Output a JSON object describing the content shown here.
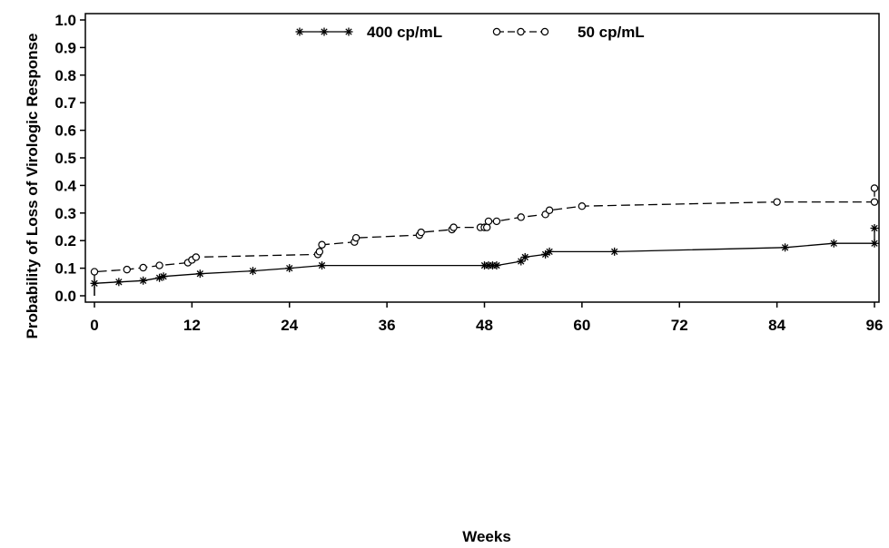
{
  "chart_data": {
    "type": "line",
    "title": "",
    "xlabel": "Weeks",
    "ylabel": "Probability of Loss of Virologic Response",
    "xlim": [
      0,
      96
    ],
    "ylim": [
      0.0,
      1.0
    ],
    "x_ticks": [
      0,
      12,
      24,
      36,
      48,
      60,
      72,
      84,
      96
    ],
    "y_ticks": [
      0.0,
      0.1,
      0.2,
      0.3,
      0.4,
      0.5,
      0.6,
      0.7,
      0.8,
      0.9,
      1.0
    ],
    "x_tick_labels": [
      "0",
      "12",
      "24",
      "36",
      "48",
      "60",
      "72",
      "84",
      "96"
    ],
    "y_tick_labels": [
      "0.0",
      "0.1",
      "0.2",
      "0.3",
      "0.4",
      "0.5",
      "0.6",
      "0.7",
      "0.8",
      "0.9",
      "1.0"
    ],
    "grid": false,
    "legend": "top-center",
    "series": [
      {
        "name": "400 cp/mL",
        "line": "solid",
        "marker": "star",
        "color": "#000000",
        "points": [
          [
            0,
            0.0
          ],
          [
            0,
            0.045
          ],
          [
            3,
            0.05
          ],
          [
            6,
            0.055
          ],
          [
            8,
            0.065
          ],
          [
            8.5,
            0.07
          ],
          [
            13,
            0.08
          ],
          [
            19.5,
            0.09
          ],
          [
            24,
            0.1
          ],
          [
            28,
            0.11
          ],
          [
            48,
            0.11
          ],
          [
            48.5,
            0.11
          ],
          [
            49,
            0.11
          ],
          [
            49.5,
            0.11
          ],
          [
            52.5,
            0.125
          ],
          [
            53,
            0.14
          ],
          [
            55.5,
            0.15
          ],
          [
            56,
            0.16
          ],
          [
            64,
            0.16
          ],
          [
            85,
            0.175
          ],
          [
            91,
            0.19
          ],
          [
            96,
            0.19
          ],
          [
            96,
            0.245
          ]
        ]
      },
      {
        "name": "50 cp/mL",
        "line": "dashed",
        "marker": "circle",
        "color": "#000000",
        "points": [
          [
            0,
            0.0
          ],
          [
            0,
            0.087
          ],
          [
            4,
            0.095
          ],
          [
            6,
            0.102
          ],
          [
            8,
            0.11
          ],
          [
            11.5,
            0.12
          ],
          [
            12,
            0.13
          ],
          [
            12.5,
            0.14
          ],
          [
            27.5,
            0.15
          ],
          [
            27.7,
            0.16
          ],
          [
            28,
            0.185
          ],
          [
            32,
            0.195
          ],
          [
            32.2,
            0.21
          ],
          [
            40,
            0.22
          ],
          [
            40.2,
            0.23
          ],
          [
            44,
            0.24
          ],
          [
            44.2,
            0.248
          ],
          [
            47.5,
            0.248
          ],
          [
            48,
            0.248
          ],
          [
            48.3,
            0.248
          ],
          [
            48.5,
            0.27
          ],
          [
            49.5,
            0.27
          ],
          [
            52.5,
            0.285
          ],
          [
            55.5,
            0.295
          ],
          [
            56,
            0.31
          ],
          [
            60,
            0.325
          ],
          [
            84,
            0.34
          ],
          [
            96,
            0.34
          ],
          [
            96,
            0.39
          ]
        ]
      }
    ]
  }
}
